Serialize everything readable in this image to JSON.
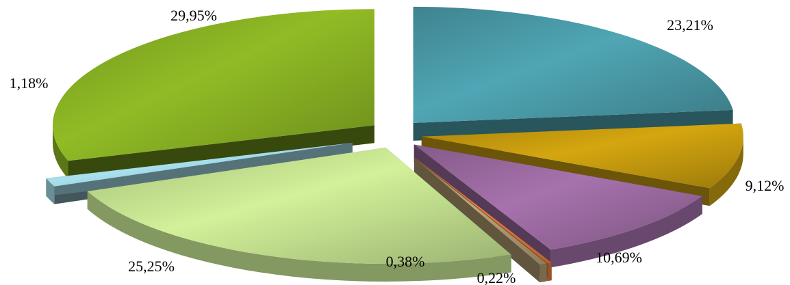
{
  "chart_data": {
    "type": "pie",
    "style": "3d-exploded",
    "legend": "none",
    "slices": [
      {
        "value": 23.21,
        "label": "23,21%",
        "color": "#4a9aa8"
      },
      {
        "value": 9.12,
        "label": "9,12%",
        "color": "#c49a0e"
      },
      {
        "value": 10.69,
        "label": "10,69%",
        "color": "#9b6aa0"
      },
      {
        "value": 0.22,
        "label": "0,22%",
        "color": "#e0783a"
      },
      {
        "value": 0.38,
        "label": "0,38%",
        "color": "#b09a70"
      },
      {
        "value": 25.25,
        "label": "25,25%",
        "color": "#c2df8e"
      },
      {
        "value": 1.18,
        "label": "1,18%",
        "color": "#9ccfdc"
      },
      {
        "value": 29.95,
        "label": "29,95%",
        "color": "#86ae22"
      }
    ]
  }
}
